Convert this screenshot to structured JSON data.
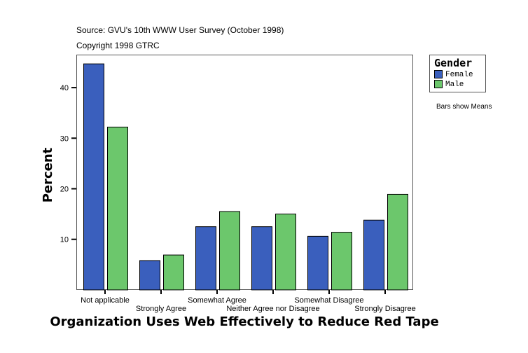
{
  "chart_data": {
    "type": "bar",
    "title": "",
    "source_line": "Source: GVU's 10th WWW User Survey (October 1998)",
    "copyright_line": "Copyright 1998 GTRC",
    "xlabel": "Organization Uses Web Effectively to Reduce Red Tape",
    "ylabel": "Percent",
    "ylim": [
      0,
      46.7
    ],
    "yticks": [
      10,
      20,
      30,
      40
    ],
    "grid": false,
    "categories": [
      "Not applicable",
      "Strongly Agree",
      "Somewhat Agree",
      "Neither Agree nor Disagree",
      "Somewhat Disagree",
      "Strongly Disagree"
    ],
    "series": [
      {
        "name": "Female",
        "color": "#3a5fbd",
        "values": [
          44.7,
          5.8,
          12.5,
          12.5,
          10.6,
          13.8
        ]
      },
      {
        "name": "Male",
        "color": "#6cc76c",
        "values": [
          32.2,
          6.9,
          15.5,
          15.0,
          11.4,
          18.9
        ]
      }
    ],
    "legend": {
      "title": "Gender",
      "placement": "top-right"
    },
    "note": "Bars show Means"
  }
}
